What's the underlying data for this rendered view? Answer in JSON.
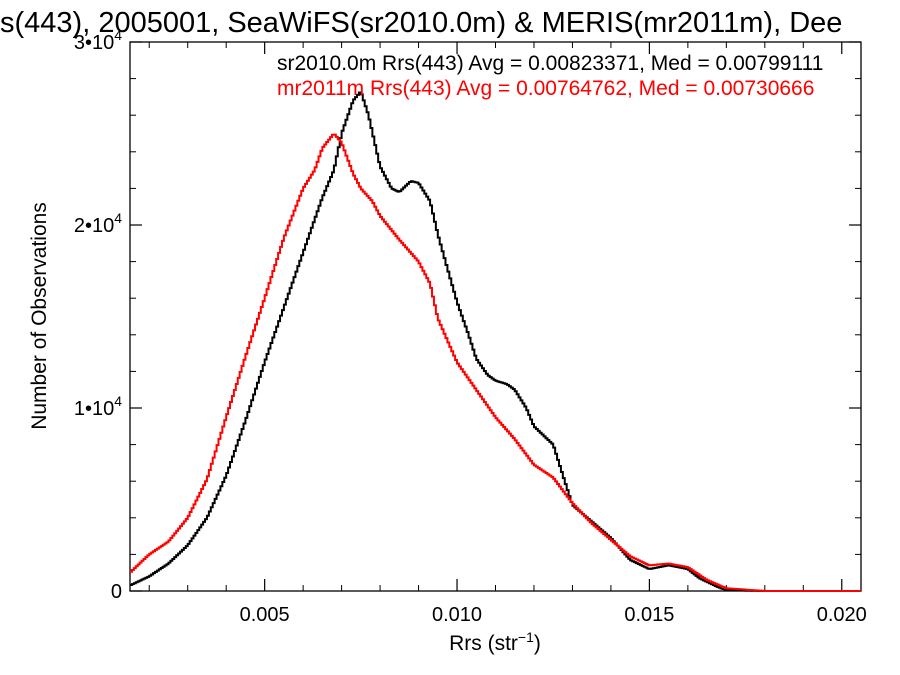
{
  "chart_data": {
    "type": "line",
    "style": "step-histogram",
    "title": "s(443), 2005001, SeaWiFS(sr2010.0m) & MERIS(mr2011m), Dee",
    "xlabel_main": "Rrs (str",
    "xlabel_sup": "−1",
    "xlabel_end": ")",
    "ylabel": "Number of Observations",
    "xlim": [
      0.0015,
      0.0205
    ],
    "ylim": [
      0,
      30000
    ],
    "x_ticks": [
      {
        "value": 0.005,
        "label": "0.005"
      },
      {
        "value": 0.01,
        "label": "0.010"
      },
      {
        "value": 0.015,
        "label": "0.015"
      },
      {
        "value": 0.02,
        "label": "0.020"
      }
    ],
    "y_ticks": [
      {
        "value": 0,
        "base": "0",
        "exp": ""
      },
      {
        "value": 10000,
        "base": "1•10",
        "exp": "4"
      },
      {
        "value": 20000,
        "base": "2•10",
        "exp": "4"
      },
      {
        "value": 30000,
        "base": "3•10",
        "exp": "4"
      }
    ],
    "grid": false,
    "legend_position": "top-right",
    "series": [
      {
        "name": "sr2010.0m Rrs(443) Avg = 0.00823371, Med = 0.00799111",
        "color": "#000000",
        "points": [
          [
            0.0015,
            300
          ],
          [
            0.002,
            800
          ],
          [
            0.0025,
            1500
          ],
          [
            0.003,
            2500
          ],
          [
            0.0035,
            4000
          ],
          [
            0.004,
            6300
          ],
          [
            0.0045,
            9300
          ],
          [
            0.005,
            12500
          ],
          [
            0.0055,
            15500
          ],
          [
            0.006,
            18500
          ],
          [
            0.0065,
            21500
          ],
          [
            0.0068,
            23000
          ],
          [
            0.007,
            25000
          ],
          [
            0.0073,
            26800
          ],
          [
            0.0075,
            27300
          ],
          [
            0.0077,
            26000
          ],
          [
            0.008,
            23200
          ],
          [
            0.0083,
            22000
          ],
          [
            0.0085,
            21800
          ],
          [
            0.0088,
            22400
          ],
          [
            0.009,
            22300
          ],
          [
            0.0093,
            21300
          ],
          [
            0.0095,
            19500
          ],
          [
            0.0097,
            18000
          ],
          [
            0.01,
            15800
          ],
          [
            0.0103,
            14000
          ],
          [
            0.0105,
            12700
          ],
          [
            0.0108,
            11800
          ],
          [
            0.011,
            11500
          ],
          [
            0.0113,
            11300
          ],
          [
            0.0115,
            11000
          ],
          [
            0.0118,
            10000
          ],
          [
            0.012,
            9000
          ],
          [
            0.0125,
            8000
          ],
          [
            0.0128,
            6000
          ],
          [
            0.013,
            4700
          ],
          [
            0.0135,
            3800
          ],
          [
            0.014,
            2900
          ],
          [
            0.0145,
            1700
          ],
          [
            0.015,
            1200
          ],
          [
            0.0155,
            1400
          ],
          [
            0.016,
            1200
          ],
          [
            0.0163,
            700
          ],
          [
            0.0168,
            200
          ],
          [
            0.017,
            50
          ],
          [
            0.018,
            0
          ],
          [
            0.0205,
            0
          ]
        ]
      },
      {
        "name": "mr2011m Rrs(443) Avg = 0.00764762, Med = 0.00730666",
        "color": "#ff0000",
        "points": [
          [
            0.0015,
            1000
          ],
          [
            0.002,
            2000
          ],
          [
            0.0025,
            2700
          ],
          [
            0.003,
            4000
          ],
          [
            0.0035,
            6100
          ],
          [
            0.004,
            9500
          ],
          [
            0.0045,
            12800
          ],
          [
            0.005,
            16000
          ],
          [
            0.0055,
            19300
          ],
          [
            0.006,
            22000
          ],
          [
            0.0063,
            23000
          ],
          [
            0.0065,
            24200
          ],
          [
            0.0068,
            25000
          ],
          [
            0.007,
            24500
          ],
          [
            0.0073,
            22800
          ],
          [
            0.0075,
            22000
          ],
          [
            0.0078,
            21300
          ],
          [
            0.008,
            20500
          ],
          [
            0.0085,
            19200
          ],
          [
            0.009,
            18000
          ],
          [
            0.0093,
            16800
          ],
          [
            0.0095,
            14900
          ],
          [
            0.01,
            12500
          ],
          [
            0.0105,
            11000
          ],
          [
            0.011,
            9500
          ],
          [
            0.0115,
            8300
          ],
          [
            0.012,
            6900
          ],
          [
            0.0125,
            6200
          ],
          [
            0.013,
            4800
          ],
          [
            0.0135,
            3700
          ],
          [
            0.014,
            2800
          ],
          [
            0.0145,
            1900
          ],
          [
            0.015,
            1400
          ],
          [
            0.0155,
            1500
          ],
          [
            0.016,
            1300
          ],
          [
            0.0165,
            600
          ],
          [
            0.017,
            150
          ],
          [
            0.018,
            0
          ],
          [
            0.0205,
            0
          ]
        ]
      }
    ]
  }
}
